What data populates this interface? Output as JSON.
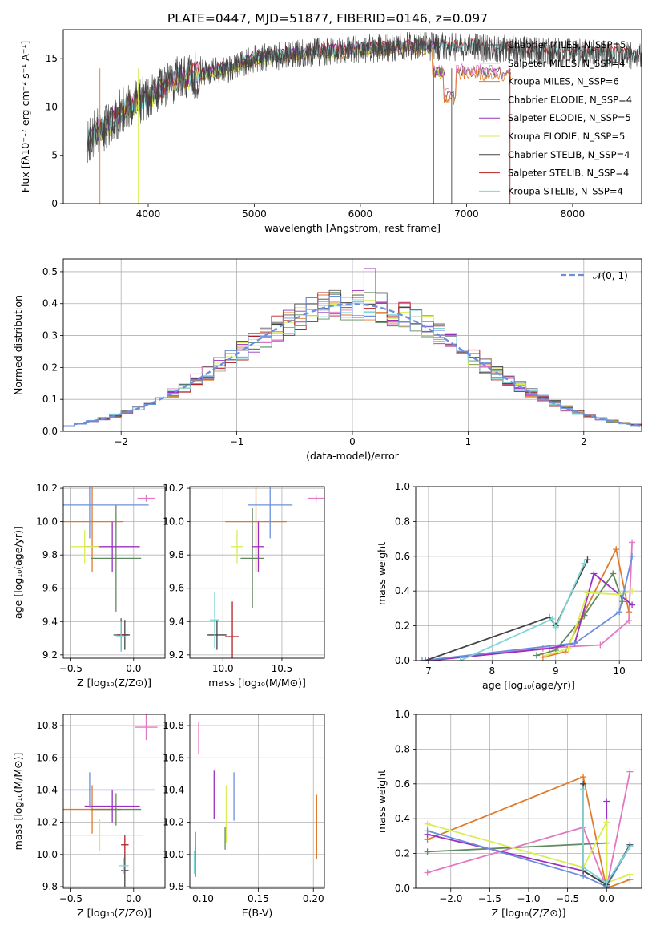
{
  "title": "PLATE=0447, MJD=51877, FIBERID=0146, z=0.097",
  "colors": {
    "Chabrier MILES": "#5b5b5b",
    "Salpeter MILES": "#e377c2",
    "Kroupa MILES": "#e07b2b",
    "Chabrier ELODIE": "#5f8a5f",
    "Salpeter ELODIE": "#9b30c0",
    "Kroupa ELODIE": "#d9ee55",
    "Chabrier STELIB": "#444444",
    "Salpeter STELIB": "#b22222",
    "Kroupa STELIB": "#7fd6d6",
    "blue": "#6b8fdc"
  },
  "chart_data": [
    {
      "type": "line",
      "id": "spectrum",
      "title": "PLATE=0447, MJD=51877, FIBERID=0146, z=0.097",
      "xlabel": "wavelength [Angstrom, rest frame]",
      "ylabel": "Flux [fλ10⁻¹⁷ erg cm⁻² s⁻¹ A⁻¹]",
      "xlim": [
        3200,
        8650
      ],
      "ylim": [
        0,
        18
      ],
      "xticks": [
        "4000",
        "5000",
        "6000",
        "7000",
        "8000"
      ],
      "yticks": [
        "0",
        "5",
        "10",
        "15"
      ],
      "legend_location": "upper right",
      "legend": [
        "Chabrier MILES, N_SSP=5",
        "Salpeter MILES, N_SSP=4",
        "Kroupa MILES, N_SSP=6",
        "Chabrier ELODIE, N_SSP=4",
        "Salpeter ELODIE, N_SSP=5",
        "Kroupa ELODIE, N_SSP=5",
        "Chabrier STELIB, N_SSP=4",
        "Salpeter STELIB, N_SSP=4",
        "Kroupa STELIB, N_SSP=4"
      ],
      "continuum": {
        "wavelength": [
          3400,
          3600,
          3800,
          4000,
          4200,
          4500,
          4800,
          5000,
          5500,
          6000,
          6500,
          7000,
          7500,
          8000,
          8500
        ],
        "flux": [
          6.5,
          8.0,
          10.0,
          11.0,
          12.5,
          13.5,
          14.0,
          15.0,
          15.6,
          16.0,
          16.3,
          16.2,
          15.9,
          15.6,
          15.3
        ]
      }
    },
    {
      "type": "histogram",
      "id": "residuals",
      "xlabel": "(data-model)/error",
      "ylabel": "Normed distribution",
      "xlim": [
        -2.5,
        2.5
      ],
      "ylim": [
        0,
        0.54
      ],
      "xticks": [
        "−2",
        "−1",
        "0",
        "1",
        "2"
      ],
      "yticks": [
        "0.0",
        "0.1",
        "0.2",
        "0.3",
        "0.4",
        "0.5"
      ],
      "grid": true,
      "legend_location": "upper right",
      "reference_label": "𝒩(0, 1)",
      "bin_width": 0.1
    },
    {
      "type": "errorbar",
      "id": "age-vs-Z",
      "xlabel": "Z [log₁₀(Z/Z⊙)]",
      "ylabel": "age  [log₁₀(age/yr)]",
      "xlim": [
        -0.56,
        0.25
      ],
      "ylim": [
        9.18,
        10.21
      ],
      "xticks": [
        "−0.5",
        "0.0"
      ],
      "yticks": [
        "9.2",
        "9.4",
        "9.6",
        "9.8",
        "10.0",
        "10.2"
      ],
      "grid": true,
      "points": [
        {
          "model": "Chabrier MILES",
          "x": -0.1,
          "xerr": 0.06,
          "y": 9.32,
          "yerr": 0.1
        },
        {
          "model": "Salpeter MILES",
          "x": 0.1,
          "xerr": 0.07,
          "y": 10.14,
          "yerr": 0.02
        },
        {
          "model": "Kroupa MILES",
          "x": -0.33,
          "xerr": 0.25,
          "y": 10.0,
          "yerr": 0.3
        },
        {
          "model": "Chabrier ELODIE",
          "x": -0.14,
          "xerr": 0.2,
          "y": 9.78,
          "yerr": 0.32
        },
        {
          "model": "Salpeter ELODIE",
          "x": -0.17,
          "xerr": 0.22,
          "y": 9.85,
          "yerr": 0.15
        },
        {
          "model": "Kroupa ELODIE",
          "x": -0.39,
          "xerr": 0.11,
          "y": 9.85,
          "yerr": 0.1
        },
        {
          "model": "Chabrier STELIB",
          "x": -0.07,
          "xerr": 0.04,
          "y": 9.32,
          "yerr": 0.09
        },
        {
          "model": "Salpeter STELIB",
          "x": -0.1,
          "xerr": 0.03,
          "y": 9.32,
          "yerr": 0.09
        },
        {
          "model": "Kroupa STELIB",
          "x": -0.1,
          "xerr": 0.04,
          "y": 9.31,
          "yerr": 0.09
        },
        {
          "model": "blue",
          "x": -0.35,
          "xerr": 0.47,
          "y": 10.1,
          "yerr": 0.2
        }
      ]
    },
    {
      "type": "errorbar",
      "id": "age-vs-mass",
      "xlabel": "mass [log₁₀(M/M⊙)]",
      "ylabel": "",
      "xlim": [
        9.72,
        10.86
      ],
      "ylim": [
        9.18,
        10.21
      ],
      "xticks": [
        "10.0",
        "10.5"
      ],
      "yticks": [
        "9.2",
        "9.4",
        "9.6",
        "9.8",
        "10.0",
        "10.2"
      ],
      "grid": true,
      "points": [
        {
          "model": "Salpeter MILES",
          "x": 10.79,
          "xerr": 0.07,
          "y": 10.14,
          "yerr": 0.02
        },
        {
          "model": "Kroupa MILES",
          "x": 10.28,
          "xerr": 0.26,
          "y": 10.0,
          "yerr": 0.3
        },
        {
          "model": "Chabrier ELODIE",
          "x": 10.25,
          "xerr": 0.1,
          "y": 9.78,
          "yerr": 0.3
        },
        {
          "model": "Salpeter ELODIE",
          "x": 10.3,
          "xerr": 0.05,
          "y": 9.85,
          "yerr": 0.15
        },
        {
          "model": "Kroupa ELODIE",
          "x": 10.12,
          "xerr": 0.05,
          "y": 9.85,
          "yerr": 0.1
        },
        {
          "model": "Chabrier STELIB",
          "x": 9.95,
          "xerr": 0.08,
          "y": 9.32,
          "yerr": 0.09
        },
        {
          "model": "Salpeter STELIB",
          "x": 10.08,
          "xerr": 0.06,
          "y": 9.31,
          "yerr": 0.21
        },
        {
          "model": "Kroupa STELIB",
          "x": 9.93,
          "xerr": 0.04,
          "y": 9.41,
          "yerr": 0.17
        },
        {
          "model": "blue",
          "x": 10.4,
          "xerr": 0.19,
          "y": 10.1,
          "yerr": 0.2
        }
      ]
    },
    {
      "type": "line",
      "id": "weight-vs-age",
      "xlabel": "age  [log₁₀(age/yr)]",
      "ylabel": "mass weight",
      "xlim": [
        6.8,
        10.35
      ],
      "ylim": [
        0,
        1
      ],
      "xticks": [
        "7",
        "8",
        "9",
        "10"
      ],
      "yticks": [
        "0.0",
        "0.2",
        "0.4",
        "0.6",
        "0.8",
        "1.0"
      ],
      "grid": true,
      "series": [
        {
          "model": "Kroupa MILES",
          "x": [
            8.8,
            9.15,
            9.4,
            9.95,
            10.15
          ],
          "y": [
            0.02,
            0.05,
            0.24,
            0.64,
            0.28
          ]
        },
        {
          "model": "Salpeter MILES",
          "x": [
            7.0,
            8.8,
            9.2,
            9.7,
            10.15,
            10.2
          ],
          "y": [
            0.0,
            0.07,
            0.08,
            0.09,
            0.23,
            0.68
          ]
        },
        {
          "model": "Chabrier ELODIE",
          "x": [
            8.7,
            9.0,
            9.45,
            9.9,
            10.05
          ],
          "y": [
            0.03,
            0.06,
            0.26,
            0.5,
            0.34
          ]
        },
        {
          "model": "Salpeter ELODIE",
          "x": [
            7.0,
            8.9,
            9.3,
            9.6,
            10.2
          ],
          "y": [
            0.0,
            0.07,
            0.1,
            0.5,
            0.32
          ]
        },
        {
          "model": "Kroupa ELODIE",
          "x": [
            8.85,
            9.2,
            9.5,
            10.0,
            10.2
          ],
          "y": [
            0.03,
            0.07,
            0.39,
            0.38,
            0.4
          ]
        },
        {
          "model": "blue",
          "x": [
            6.9,
            9.3,
            10.0,
            10.2
          ],
          "y": [
            0.0,
            0.1,
            0.28,
            0.6
          ]
        },
        {
          "model": "Chabrier STELIB",
          "x": [
            6.95,
            8.9,
            9.0,
            9.5
          ],
          "y": [
            0.0,
            0.25,
            0.2,
            0.58
          ]
        },
        {
          "model": "Kroupa STELIB",
          "x": [
            7.5,
            8.95,
            9.0,
            9.45
          ],
          "y": [
            0.0,
            0.24,
            0.19,
            0.56
          ]
        }
      ]
    },
    {
      "type": "errorbar",
      "id": "mass-vs-Z",
      "xlabel": "Z [log₁₀(Z/Z⊙)]",
      "ylabel": "mass [log₁₀(M/M⊙)]",
      "xlim": [
        -0.56,
        0.25
      ],
      "ylim": [
        9.79,
        10.87
      ],
      "xticks": [
        "−0.5",
        "0.0"
      ],
      "yticks": [
        "9.8",
        "10.0",
        "10.2",
        "10.4",
        "10.6",
        "10.8"
      ],
      "grid": true,
      "points": [
        {
          "model": "Salpeter MILES",
          "x": 0.1,
          "xerr": 0.09,
          "y": 10.79,
          "yerr": 0.08
        },
        {
          "model": "Kroupa MILES",
          "x": -0.33,
          "xerr": 0.23,
          "y": 10.28,
          "yerr": 0.15
        },
        {
          "model": "Chabrier ELODIE",
          "x": -0.14,
          "xerr": 0.2,
          "y": 10.28,
          "yerr": 0.1
        },
        {
          "model": "Salpeter ELODIE",
          "x": -0.17,
          "xerr": 0.22,
          "y": 10.3,
          "yerr": 0.1
        },
        {
          "model": "Kroupa ELODIE",
          "x": -0.27,
          "xerr": 0.34,
          "y": 10.12,
          "yerr": 0.1
        },
        {
          "model": "Chabrier STELIB",
          "x": -0.07,
          "xerr": 0.03,
          "y": 9.9,
          "yerr": 0.1
        },
        {
          "model": "Salpeter STELIB",
          "x": -0.07,
          "xerr": 0.03,
          "y": 10.06,
          "yerr": 0.06
        },
        {
          "model": "Kroupa STELIB",
          "x": -0.08,
          "xerr": 0.04,
          "y": 9.93,
          "yerr": 0.05
        },
        {
          "model": "blue",
          "x": -0.35,
          "xerr": 0.52,
          "y": 10.4,
          "yerr": 0.11
        }
      ]
    },
    {
      "type": "errorbar",
      "id": "mass-vs-ebv",
      "xlabel": "E(B-V)",
      "ylabel": "",
      "xlim": [
        0.088,
        0.21
      ],
      "ylim": [
        9.79,
        10.87
      ],
      "xticks": [
        "0.10",
        "0.15",
        "0.20"
      ],
      "yticks": [
        "9.8",
        "10.0",
        "10.2",
        "10.4",
        "10.6",
        "10.8"
      ],
      "grid": true,
      "points": [
        {
          "model": "Salpeter MILES",
          "x": 0.096,
          "xerr": 0,
          "y": 10.72,
          "yerr": 0.1
        },
        {
          "model": "Kroupa MILES",
          "x": 0.203,
          "xerr": 0,
          "y": 10.17,
          "yerr": 0.2
        },
        {
          "model": "Salpeter ELODIE",
          "x": 0.11,
          "xerr": 0,
          "y": 10.37,
          "yerr": 0.15
        },
        {
          "model": "Kroupa ELODIE",
          "x": 0.121,
          "xerr": 0,
          "y": 10.25,
          "yerr": 0.18
        },
        {
          "model": "Chabrier ELODIE",
          "x": 0.12,
          "xerr": 0,
          "y": 10.1,
          "yerr": 0.07
        },
        {
          "model": "Salpeter STELIB",
          "x": 0.093,
          "xerr": 0,
          "y": 10.05,
          "yerr": 0.09
        },
        {
          "model": "Chabrier STELIB",
          "x": 0.093,
          "xerr": 0,
          "y": 9.96,
          "yerr": 0.1
        },
        {
          "model": "Kroupa STELIB",
          "x": 0.092,
          "xerr": 0,
          "y": 9.95,
          "yerr": 0.07
        },
        {
          "model": "blue",
          "x": 0.128,
          "xerr": 0,
          "y": 10.36,
          "yerr": 0.15
        }
      ]
    },
    {
      "type": "line",
      "id": "weight-vs-Z",
      "xlabel": "Z [log₁₀(Z/Z⊙)]",
      "ylabel": "mass weight",
      "xlim": [
        -2.45,
        0.45
      ],
      "ylim": [
        0,
        1
      ],
      "xticks": [
        "−2.0",
        "−1.5",
        "−1.0",
        "−0.5",
        "0.0"
      ],
      "yticks": [
        "0.0",
        "0.2",
        "0.4",
        "0.6",
        "0.8",
        "1.0"
      ],
      "grid": true,
      "series": [
        {
          "model": "Kroupa MILES",
          "x": [
            -2.3,
            -0.3,
            0.0,
            0.3
          ],
          "y": [
            0.28,
            0.64,
            0.0,
            0.05
          ]
        },
        {
          "model": "Salpeter MILES",
          "x": [
            -2.3,
            -0.3,
            0.0,
            0.3
          ],
          "y": [
            0.09,
            0.35,
            0.0,
            0.67
          ]
        },
        {
          "model": "Chabrier ELODIE",
          "x": [
            -2.3,
            0.0
          ],
          "y": [
            0.21,
            0.26
          ]
        },
        {
          "model": "Salpeter ELODIE",
          "x": [
            -2.3,
            -0.3,
            0.0,
            0.0
          ],
          "y": [
            0.31,
            0.1,
            0.02,
            0.5
          ]
        },
        {
          "model": "Kroupa ELODIE",
          "x": [
            -2.3,
            -0.3,
            0.0,
            0.0,
            0.3
          ],
          "y": [
            0.37,
            0.12,
            0.38,
            0.03,
            0.08
          ]
        },
        {
          "model": "blue",
          "x": [
            -2.3,
            -0.3,
            0.0,
            0.3
          ],
          "y": [
            0.33,
            0.07,
            0.01,
            0.24
          ]
        },
        {
          "model": "Chabrier STELIB",
          "x": [
            -0.3,
            -0.3,
            0.0,
            0.3
          ],
          "y": [
            0.6,
            0.1,
            0.02,
            0.25
          ]
        },
        {
          "model": "Kroupa STELIB",
          "x": [
            -0.3,
            -0.3,
            0.0,
            0.3
          ],
          "y": [
            0.57,
            0.12,
            0.03,
            0.24
          ]
        }
      ]
    }
  ]
}
